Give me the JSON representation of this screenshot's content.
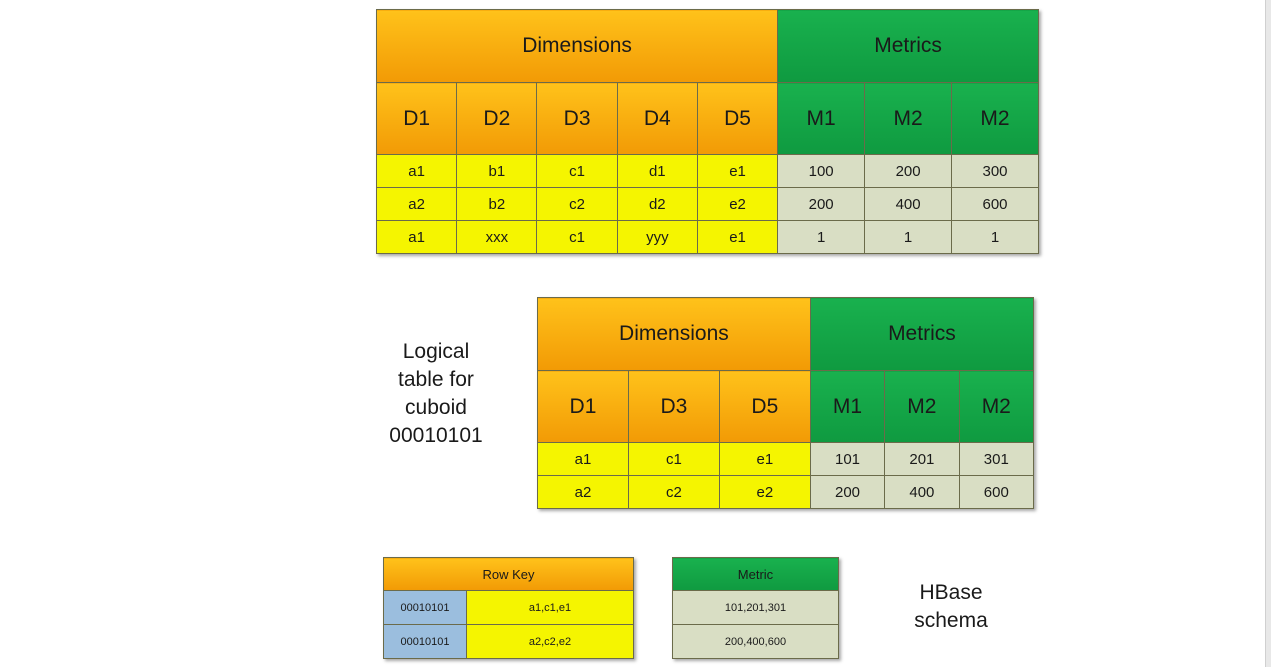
{
  "table1": {
    "dim_header": "Dimensions",
    "met_header": "Metrics",
    "dim_cols": [
      "D1",
      "D2",
      "D3",
      "D4",
      "D5"
    ],
    "met_cols": [
      "M1",
      "M2",
      "M2"
    ],
    "rows": [
      {
        "dims": [
          "a1",
          "b1",
          "c1",
          "d1",
          "e1"
        ],
        "mets": [
          "100",
          "200",
          "300"
        ]
      },
      {
        "dims": [
          "a2",
          "b2",
          "c2",
          "d2",
          "e2"
        ],
        "mets": [
          "200",
          "400",
          "600"
        ]
      },
      {
        "dims": [
          "a1",
          "xxx",
          "c1",
          "yyy",
          "e1"
        ],
        "mets": [
          "1",
          "1",
          "1"
        ]
      }
    ]
  },
  "table2": {
    "label_lines": [
      "Logical",
      "table for",
      "cuboid",
      "00010101"
    ],
    "dim_header": "Dimensions",
    "met_header": "Metrics",
    "dim_cols": [
      "D1",
      "D3",
      "D5"
    ],
    "met_cols": [
      "M1",
      "M2",
      "M2"
    ],
    "rows": [
      {
        "dims": [
          "a1",
          "c1",
          "e1"
        ],
        "mets": [
          "101",
          "201",
          "301"
        ]
      },
      {
        "dims": [
          "a2",
          "c2",
          "e2"
        ],
        "mets": [
          "200",
          "400",
          "600"
        ]
      }
    ]
  },
  "hbase": {
    "label_lines": [
      "HBase",
      "schema"
    ],
    "rowkey_header": "Row Key",
    "metric_header": "Metric",
    "rows": [
      {
        "cuboid": "00010101",
        "key": "a1,c1,e1",
        "metric": "101,201,301"
      },
      {
        "cuboid": "00010101",
        "key": "a2,c2,e2",
        "metric": "200,400,600"
      }
    ]
  },
  "colors": {
    "dimension_header": "#f6a80c",
    "metric_header": "#14a547",
    "dimension_cell": "#f5f500",
    "metric_cell": "#d9dec4",
    "cuboid_cell": "#9bbede"
  }
}
